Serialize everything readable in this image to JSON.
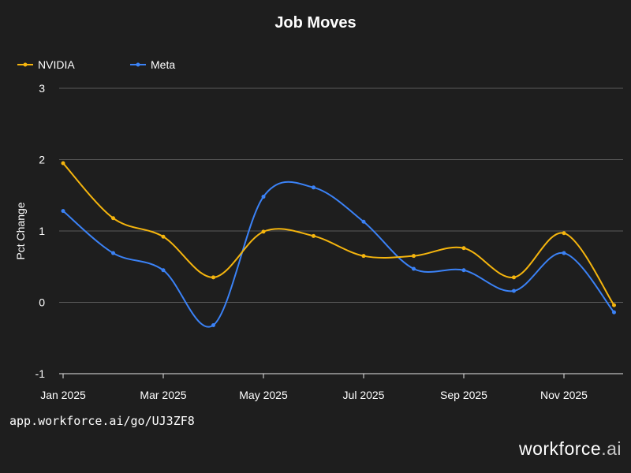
{
  "chart_data": {
    "type": "line",
    "title": "Job Moves",
    "xlabel": "",
    "ylabel": "Pct Change",
    "ylim": [
      -1,
      3
    ],
    "yticks": [
      -1,
      0,
      1,
      2,
      3
    ],
    "x": [
      "Jan 2025",
      "Feb 2025",
      "Mar 2025",
      "Apr 2025",
      "May 2025",
      "Jun 2025",
      "Jul 2025",
      "Aug 2025",
      "Sep 2025",
      "Oct 2025",
      "Nov 2025",
      "Dec 2025"
    ],
    "xtick_labels": [
      "Jan 2025",
      "Mar 2025",
      "May 2025",
      "Jul 2025",
      "Sep 2025",
      "Nov 2025"
    ],
    "legend_position": "top-left",
    "grid": true,
    "series": [
      {
        "name": "NVIDIA",
        "color": "#f5b50e",
        "values": [
          1.95,
          1.18,
          0.92,
          0.35,
          0.99,
          0.93,
          0.65,
          0.65,
          0.76,
          0.35,
          0.97,
          -0.04
        ]
      },
      {
        "name": "Meta",
        "color": "#3b82f6",
        "values": [
          1.28,
          0.69,
          0.45,
          -0.32,
          1.48,
          1.61,
          1.13,
          0.47,
          0.45,
          0.16,
          0.69,
          -0.14
        ]
      }
    ]
  },
  "footer": {
    "url": "app.workforce.ai/go/UJ3ZF8",
    "brand_main": "workforce",
    "brand_suffix": ".ai"
  }
}
